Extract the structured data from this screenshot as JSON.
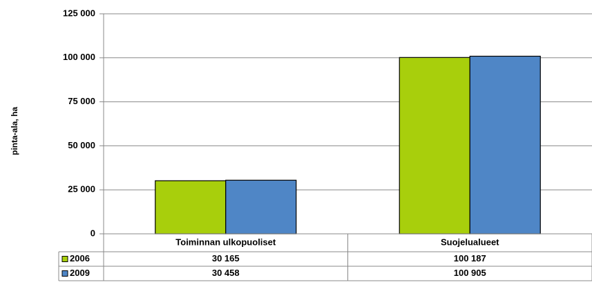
{
  "chart_data": {
    "type": "bar",
    "y_label": "pinta-ala, ha",
    "categories": [
      "Toiminnan ulkopuoliset",
      "Suojelualueet"
    ],
    "series": [
      {
        "name": "2006",
        "color": "#a8cf0c",
        "values": [
          30165,
          100187
        ],
        "value_labels": [
          "30 165",
          "100 187"
        ]
      },
      {
        "name": "2009",
        "color": "#4f86c6",
        "values": [
          30458,
          100905
        ],
        "value_labels": [
          "30 458",
          "100 905"
        ]
      }
    ],
    "ylim": [
      0,
      125000
    ],
    "yticks": [
      0,
      {
        "value": 25000,
        "label": "25 000"
      },
      {
        "value": 50000,
        "label": "50 000"
      },
      {
        "value": 75000,
        "label": "75 000"
      },
      {
        "value": 100000,
        "label": "100 000"
      },
      {
        "value": 125000,
        "label": "125 000"
      }
    ],
    "grid": true
  }
}
